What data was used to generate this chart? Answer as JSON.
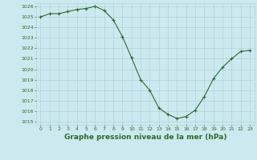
{
  "x": [
    0,
    1,
    2,
    3,
    4,
    5,
    6,
    7,
    8,
    9,
    10,
    11,
    12,
    13,
    14,
    15,
    16,
    17,
    18,
    19,
    20,
    21,
    22,
    23
  ],
  "y": [
    1025.0,
    1025.3,
    1025.3,
    1025.5,
    1025.7,
    1025.8,
    1026.0,
    1025.6,
    1024.7,
    1023.1,
    1021.1,
    1019.0,
    1018.0,
    1016.3,
    1015.7,
    1015.3,
    1015.5,
    1016.1,
    1017.4,
    1019.1,
    1020.2,
    1021.0,
    1021.7,
    1021.8
  ],
  "line_color": "#2d6a2d",
  "marker": "+",
  "markersize": 3,
  "linewidth": 0.8,
  "bg_color": "#cce9f0",
  "grid_color": "#aacdd6",
  "title": "Graphe pression niveau de la mer (hPa)",
  "title_fontsize": 6.5,
  "ylim": [
    1015,
    1026
  ],
  "xlim": [
    -0.5,
    23.5
  ],
  "yticks": [
    1015,
    1016,
    1017,
    1018,
    1019,
    1020,
    1021,
    1022,
    1023,
    1024,
    1025,
    1026
  ],
  "xticks": [
    0,
    1,
    2,
    3,
    4,
    5,
    6,
    7,
    8,
    9,
    10,
    11,
    12,
    13,
    14,
    15,
    16,
    17,
    18,
    19,
    20,
    21,
    22,
    23
  ],
  "tick_fontsize": 4.5,
  "tick_color": "#2d6a2d"
}
